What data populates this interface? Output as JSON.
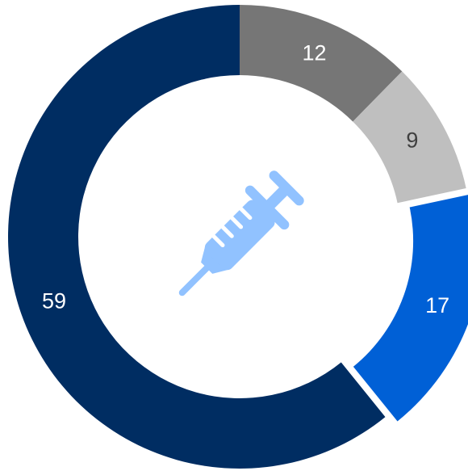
{
  "chart_data": {
    "type": "donut",
    "values": [
      12,
      9,
      17,
      59
    ],
    "colors": [
      "#767676",
      "#bfbfbf",
      "#0060d6",
      "#002d62"
    ],
    "label_colors": [
      "#ffffff",
      "#404040",
      "#ffffff",
      "#ffffff"
    ],
    "explode": [
      0,
      0,
      1,
      0
    ]
  }
}
